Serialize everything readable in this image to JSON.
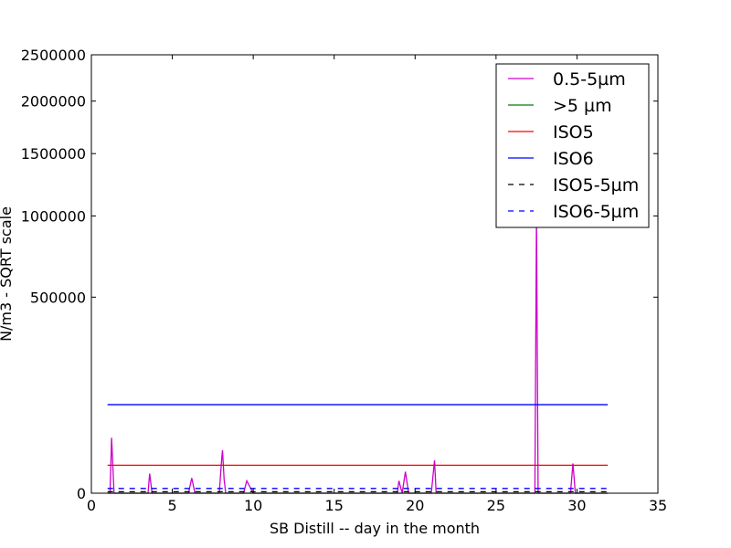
{
  "chart_data": {
    "type": "line",
    "title": "",
    "xlabel": "SB Distill -- day in the month",
    "ylabel": "N/m3 - SQRT scale",
    "y_scale": "sqrt",
    "xlim": [
      0,
      35
    ],
    "ylim": [
      0,
      2500000
    ],
    "x_ticks": [
      0,
      5,
      10,
      15,
      20,
      25,
      30,
      35
    ],
    "x_tick_labels": [
      "0",
      "5",
      "10",
      "15",
      "20",
      "25",
      "30",
      "35"
    ],
    "y_ticks": [
      0,
      500000,
      1000000,
      1500000,
      2000000,
      2500000
    ],
    "y_tick_labels": [
      "0",
      "500000",
      "1000000",
      "1500000",
      "2000000",
      "2500000"
    ],
    "grid": false,
    "legend_position": "top-right",
    "series": [
      {
        "name": "0.5-5µm",
        "color": "#cc00cc",
        "style": "solid",
        "x": [
          1.0,
          1.15,
          1.25,
          1.4,
          2.0,
          2.5,
          3.0,
          3.5,
          3.6,
          3.75,
          4.0,
          5.0,
          6.0,
          6.2,
          6.4,
          7.0,
          7.5,
          7.9,
          8.05,
          8.1,
          8.2,
          8.3,
          8.5,
          9.0,
          9.4,
          9.6,
          10.0,
          11.0,
          12.0,
          13.0,
          14.0,
          15.0,
          16.0,
          17.0,
          18.0,
          18.9,
          19.0,
          19.2,
          19.4,
          19.6,
          20.0,
          21.0,
          21.2,
          21.3,
          21.4,
          22.0,
          23.0,
          24.0,
          25.0,
          26.0,
          27.0,
          27.4,
          27.5,
          27.55,
          27.6,
          27.7,
          28.0,
          29.0,
          29.6,
          29.75,
          29.9,
          30.2,
          31.0,
          31.9
        ],
        "y": [
          0,
          0,
          40000,
          0,
          0,
          0,
          0,
          0,
          5000,
          0,
          0,
          0,
          0,
          3000,
          0,
          0,
          0,
          0,
          15000,
          24000,
          2500,
          0,
          0,
          0,
          0,
          2000,
          0,
          0,
          0,
          0,
          0,
          0,
          0,
          0,
          0,
          0,
          2000,
          0,
          6000,
          0,
          0,
          0,
          14000,
          0,
          0,
          0,
          0,
          0,
          0,
          0,
          0,
          0,
          1000000,
          250000,
          0,
          0,
          0,
          0,
          0,
          11500,
          0,
          0,
          0,
          0
        ]
      },
      {
        "name": ">5 µm",
        "color": "#008000",
        "style": "solid",
        "x": [
          1.0,
          31.9
        ],
        "y": [
          0,
          0
        ]
      },
      {
        "name": "ISO5",
        "color": "#ff0000",
        "style": "solid",
        "x": [
          1.0,
          31.9
        ],
        "y": [
          10200,
          10200
        ]
      },
      {
        "name": "ISO6",
        "color": "#0000ff",
        "style": "solid",
        "x": [
          1.0,
          31.9
        ],
        "y": [
          102000,
          102000
        ]
      },
      {
        "name": "ISO5-5µm",
        "color": "#000000",
        "style": "dashed",
        "x": [
          1.0,
          31.9
        ],
        "y": [
          29,
          29
        ]
      },
      {
        "name": "ISO6-5µm",
        "color": "#0000ff",
        "style": "dashed",
        "x": [
          1.0,
          31.9
        ],
        "y": [
          293,
          293
        ]
      }
    ]
  }
}
